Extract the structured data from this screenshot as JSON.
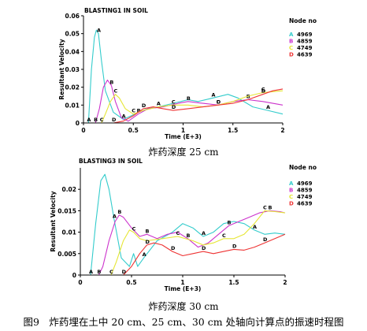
{
  "figure_caption": "图9　炸药埋在土中 20 cm、25 cm、30 cm 处轴向计算点的振速时程图",
  "chart_data": [
    {
      "type": "line",
      "title": "BLASTING1 IN SOIL",
      "xlabel": "Time (E+3)",
      "ylabel": "Resultant Velocity",
      "xlim": [
        0,
        2
      ],
      "ylim": [
        0,
        0.06
      ],
      "xticks": [
        "0",
        "0.5",
        "1",
        "1.5",
        "2"
      ],
      "yticks": [
        "0",
        "0.01",
        "0.02",
        "0.03",
        "0.04",
        "0.05",
        "0.06"
      ],
      "legend_title": "Node no",
      "legend_position": "right",
      "caption": "炸药深度 25 cm",
      "series": [
        {
          "name": "4969",
          "marker": "A",
          "color": "#33cccc",
          "x": [
            0,
            0.05,
            0.08,
            0.11,
            0.13,
            0.15,
            0.18,
            0.22,
            0.3,
            0.4,
            0.48,
            0.55,
            0.65,
            0.75,
            0.9,
            1.05,
            1.15,
            1.3,
            1.45,
            1.55,
            1.7,
            1.85,
            2.0
          ],
          "y": [
            0,
            0,
            0.03,
            0.048,
            0.052,
            0.05,
            0.035,
            0.018,
            0.006,
            0.002,
            0.004,
            0.006,
            0.008,
            0.009,
            0.011,
            0.013,
            0.012,
            0.014,
            0.016,
            0.014,
            0.009,
            0.007,
            0.005
          ]
        },
        {
          "name": "4859",
          "marker": "B",
          "color": "#cc33cc",
          "x": [
            0,
            0.12,
            0.16,
            0.2,
            0.24,
            0.28,
            0.32,
            0.38,
            0.45,
            0.55,
            0.65,
            0.8,
            0.95,
            1.05,
            1.2,
            1.35,
            1.5,
            1.65,
            1.8,
            2.0
          ],
          "y": [
            0,
            0,
            0.008,
            0.02,
            0.024,
            0.021,
            0.012,
            0.003,
            0.001,
            0.005,
            0.008,
            0.009,
            0.011,
            0.012,
            0.011,
            0.01,
            0.012,
            0.013,
            0.012,
            0.01
          ]
        },
        {
          "name": "4749",
          "marker": "C",
          "color": "#e6e633",
          "x": [
            0,
            0.18,
            0.22,
            0.27,
            0.32,
            0.36,
            0.42,
            0.5,
            0.6,
            0.75,
            0.9,
            1.05,
            1.2,
            1.35,
            1.5,
            1.65,
            1.8,
            2.0
          ],
          "y": [
            0,
            0,
            0.005,
            0.012,
            0.016,
            0.014,
            0.008,
            0.005,
            0.007,
            0.009,
            0.01,
            0.01,
            0.009,
            0.01,
            0.012,
            0.015,
            0.017,
            0.018
          ]
        },
        {
          "name": "4639",
          "marker": "D",
          "color": "#ee3333",
          "x": [
            0,
            0.3,
            0.4,
            0.5,
            0.6,
            0.7,
            0.8,
            0.9,
            1.05,
            1.2,
            1.35,
            1.5,
            1.65,
            1.8,
            1.9,
            2.0
          ],
          "y": [
            0,
            0,
            0.001,
            0.004,
            0.008,
            0.009,
            0.008,
            0.007,
            0.008,
            0.009,
            0.01,
            0.011,
            0.013,
            0.016,
            0.018,
            0.019
          ]
        }
      ]
    },
    {
      "type": "line",
      "title": "BLASTING3 IN SOIL",
      "xlabel": "Time (E+3)",
      "ylabel": "Resultant Velocity",
      "xlim": [
        0,
        2
      ],
      "ylim": [
        0,
        0.025
      ],
      "xticks": [
        "0",
        "0.5",
        "1",
        "1.5",
        "2"
      ],
      "yticks": [
        "0",
        "0.005",
        "0.01",
        "0.015",
        "0.02"
      ],
      "legend_title": "Node no",
      "legend_position": "right",
      "caption": "炸药深度 30 cm",
      "series": [
        {
          "name": "4969",
          "marker": "A",
          "color": "#33cccc",
          "x": [
            0,
            0.1,
            0.15,
            0.2,
            0.24,
            0.28,
            0.33,
            0.4,
            0.48,
            0.52,
            0.56,
            0.62,
            0.75,
            0.9,
            1.0,
            1.1,
            1.2,
            1.3,
            1.4,
            1.5,
            1.6,
            1.7,
            1.8,
            1.9,
            2.0
          ],
          "y": [
            0,
            0,
            0.012,
            0.022,
            0.0235,
            0.02,
            0.013,
            0.004,
            0.002,
            0.005,
            0.002,
            0.004,
            0.008,
            0.01,
            0.012,
            0.011,
            0.009,
            0.01,
            0.012,
            0.0125,
            0.012,
            0.0105,
            0.0095,
            0.0098,
            0.0095
          ]
        },
        {
          "name": "4859",
          "marker": "B",
          "color": "#cc33cc",
          "x": [
            0,
            0.18,
            0.22,
            0.28,
            0.34,
            0.38,
            0.42,
            0.5,
            0.58,
            0.65,
            0.75,
            0.85,
            0.95,
            1.05,
            1.15,
            1.25,
            1.35,
            1.45,
            1.55,
            1.65,
            1.75,
            1.85,
            1.95,
            2.0
          ],
          "y": [
            0,
            0,
            0.002,
            0.008,
            0.0125,
            0.014,
            0.0135,
            0.011,
            0.009,
            0.0095,
            0.0085,
            0.0095,
            0.01,
            0.0085,
            0.0065,
            0.0075,
            0.0095,
            0.0115,
            0.0125,
            0.0135,
            0.0145,
            0.015,
            0.0148,
            0.0145
          ]
        },
        {
          "name": "4749",
          "marker": "C",
          "color": "#e6e633",
          "x": [
            0,
            0.3,
            0.35,
            0.42,
            0.48,
            0.52,
            0.58,
            0.65,
            0.8,
            0.95,
            1.1,
            1.2,
            1.3,
            1.4,
            1.5,
            1.6,
            1.7,
            1.8,
            1.9,
            2.0
          ],
          "y": [
            0,
            0,
            0.003,
            0.008,
            0.0105,
            0.01,
            0.0085,
            0.008,
            0.0085,
            0.009,
            0.008,
            0.007,
            0.0075,
            0.0085,
            0.0085,
            0.0095,
            0.012,
            0.015,
            0.0148,
            0.0145
          ]
        },
        {
          "name": "4639",
          "marker": "D",
          "color": "#ee3333",
          "x": [
            0,
            0.42,
            0.5,
            0.58,
            0.65,
            0.72,
            0.8,
            0.9,
            1.0,
            1.1,
            1.2,
            1.3,
            1.4,
            1.5,
            1.6,
            1.7,
            1.8,
            1.9,
            2.0
          ],
          "y": [
            0,
            0,
            0.002,
            0.005,
            0.007,
            0.0075,
            0.007,
            0.0055,
            0.0045,
            0.005,
            0.0055,
            0.005,
            0.0055,
            0.006,
            0.0058,
            0.0065,
            0.0075,
            0.0085,
            0.0095
          ]
        }
      ]
    }
  ]
}
